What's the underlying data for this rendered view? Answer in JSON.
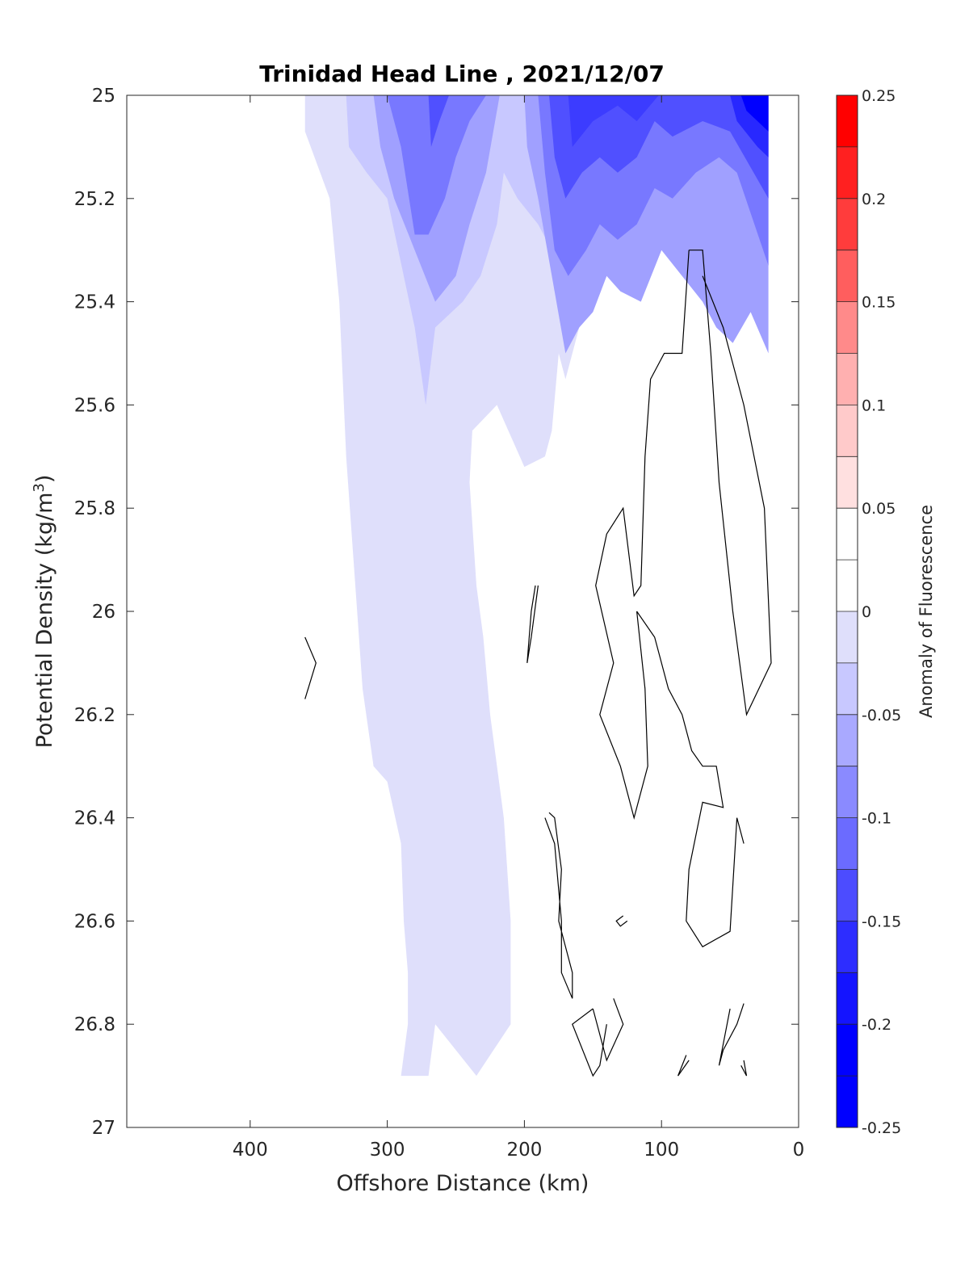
{
  "chart_data": {
    "type": "contour",
    "title": "Trinidad Head Line , 2021/12/07",
    "xlabel": "Offshore Distance (km)",
    "ylabel_main": "Potential Density (kg/m",
    "ylabel_sup": "3",
    "ylabel_close": ")",
    "xlim": [
      490,
      0
    ],
    "ylim": [
      25,
      27
    ],
    "x_reversed": true,
    "y_reversed": true,
    "xticks": [
      400,
      300,
      200,
      100,
      0
    ],
    "xtick_labels": [
      "400",
      "300",
      "200",
      "100",
      "0"
    ],
    "yticks": [
      25,
      25.2,
      25.4,
      25.6,
      25.8,
      26,
      26.2,
      26.4,
      26.6,
      26.8,
      27
    ],
    "ytick_labels": [
      "25",
      "25.2",
      "25.4",
      "25.6",
      "25.8",
      "26",
      "26.2",
      "26.4",
      "26.6",
      "26.8",
      "27"
    ],
    "colorbar": {
      "title": "Anomaly of Fluorescence",
      "range": [
        -0.25,
        0.25
      ],
      "ticks": [
        0.25,
        0.2,
        0.15,
        0.1,
        0.05,
        0,
        -0.05,
        -0.1,
        -0.15,
        -0.2,
        -0.25
      ],
      "tick_labels": [
        "0.25",
        "0.2",
        "0.15",
        "0.1",
        "0.05",
        "0",
        "-0.05",
        "-0.1",
        "-0.15",
        "-0.2",
        "-0.25"
      ],
      "levels": [
        {
          "from": 0.2,
          "to": 0.25,
          "color": "#ff0000"
        },
        {
          "from": 0.15,
          "to": 0.2,
          "color": "#ff2828"
        },
        {
          "from": 0.1,
          "to": 0.15,
          "color": "#ff5050"
        },
        {
          "from": 0.05,
          "to": 0.1,
          "color": "#ff7878"
        },
        {
          "from": 0.025,
          "to": 0.05,
          "color": "#ffa0a0"
        },
        {
          "from": 0.0,
          "to": 0.025,
          "color": "#ffc8c8"
        },
        {
          "from": -0.025,
          "to": 0.0,
          "color": "#ffdfdf"
        },
        {
          "from": -0.025,
          "to": 0.025,
          "color": "#ffffff"
        },
        {
          "from": -0.05,
          "to": -0.025,
          "color": "#dfdffb"
        },
        {
          "from": -0.075,
          "to": -0.05,
          "color": "#c8c8ff"
        },
        {
          "from": -0.1,
          "to": -0.075,
          "color": "#a0a0ff"
        },
        {
          "from": -0.125,
          "to": -0.1,
          "color": "#7878ff"
        },
        {
          "from": -0.15,
          "to": -0.125,
          "color": "#5050ff"
        },
        {
          "from": -0.2,
          "to": -0.15,
          "color": "#2828ff"
        },
        {
          "from": -0.25,
          "to": -0.2,
          "color": "#0000ff"
        }
      ],
      "strip_colors": [
        "#ff0000",
        "#ff2020",
        "#ff3c3c",
        "#ff5e5e",
        "#ff8a8a",
        "#ffb0b0",
        "#ffcaca",
        "#ffe0e0",
        "#ffffff",
        "#ffffff",
        "#dfdffb",
        "#c8c8ff",
        "#a9a9ff",
        "#8a8aff",
        "#6b6bff",
        "#4c4cff",
        "#2d2dff",
        "#1414ff",
        "#0000ff",
        "#0000ff"
      ]
    },
    "regions": [
      {
        "level": -0.025,
        "color": "#dfdffb",
        "points": [
          [
            360,
            25.0
          ],
          [
            360,
            25.07
          ],
          [
            342,
            25.2
          ],
          [
            335,
            25.4
          ],
          [
            330,
            25.7
          ],
          [
            322,
            26.0
          ],
          [
            318,
            26.15
          ],
          [
            310,
            26.3
          ],
          [
            300,
            26.33
          ],
          [
            290,
            26.45
          ],
          [
            288,
            26.6
          ],
          [
            285,
            26.7
          ],
          [
            285,
            26.8
          ],
          [
            290,
            26.9
          ],
          [
            270,
            26.9
          ],
          [
            265,
            26.8
          ],
          [
            235,
            26.9
          ],
          [
            210,
            26.8
          ],
          [
            210,
            26.6
          ],
          [
            215,
            26.4
          ],
          [
            225,
            26.2
          ],
          [
            230,
            26.05
          ],
          [
            235,
            25.95
          ],
          [
            240,
            25.75
          ],
          [
            238,
            25.65
          ],
          [
            220,
            25.6
          ],
          [
            200,
            25.72
          ],
          [
            185,
            25.7
          ],
          [
            180,
            25.65
          ],
          [
            175,
            25.5
          ],
          [
            170,
            25.55
          ],
          [
            160,
            25.45
          ],
          [
            150,
            25.35
          ],
          [
            140,
            25.3
          ],
          [
            120,
            25.25
          ],
          [
            100,
            25.2
          ],
          [
            90,
            25.1
          ],
          [
            70,
            25.05
          ],
          [
            50,
            25.1
          ],
          [
            35,
            25.0
          ]
        ]
      },
      {
        "level": -0.05,
        "color": "#c8c8ff",
        "points": [
          [
            330,
            25.0
          ],
          [
            328,
            25.1
          ],
          [
            315,
            25.15
          ],
          [
            300,
            25.2
          ],
          [
            288,
            25.35
          ],
          [
            280,
            25.45
          ],
          [
            272,
            25.6
          ],
          [
            265,
            25.45
          ],
          [
            245,
            25.4
          ],
          [
            232,
            25.35
          ],
          [
            220,
            25.25
          ],
          [
            215,
            25.15
          ],
          [
            205,
            25.2
          ],
          [
            190,
            25.25
          ],
          [
            180,
            25.3
          ],
          [
            170,
            25.35
          ],
          [
            160,
            25.3
          ],
          [
            150,
            25.25
          ],
          [
            140,
            25.2
          ],
          [
            130,
            25.25
          ],
          [
            110,
            25.2
          ],
          [
            95,
            25.15
          ],
          [
            75,
            25.1
          ],
          [
            60,
            25.05
          ],
          [
            45,
            25.05
          ],
          [
            35,
            25.0
          ]
        ]
      },
      {
        "level": -0.075,
        "color": "#a0a0ff",
        "points": [
          [
            310,
            25.0
          ],
          [
            305,
            25.1
          ],
          [
            295,
            25.2
          ],
          [
            280,
            25.3
          ],
          [
            265,
            25.4
          ],
          [
            250,
            25.35
          ],
          [
            240,
            25.25
          ],
          [
            228,
            25.15
          ],
          [
            218,
            25.0
          ]
        ]
      },
      {
        "level": -0.075,
        "color": "#a0a0ff",
        "points": [
          [
            200,
            25.0
          ],
          [
            198,
            25.1
          ],
          [
            190,
            25.2
          ],
          [
            180,
            25.35
          ],
          [
            170,
            25.5
          ],
          [
            160,
            25.45
          ],
          [
            150,
            25.42
          ],
          [
            140,
            25.35
          ],
          [
            130,
            25.38
          ],
          [
            115,
            25.4
          ],
          [
            100,
            25.3
          ],
          [
            85,
            25.35
          ],
          [
            70,
            25.4
          ],
          [
            60,
            25.45
          ],
          [
            48,
            25.48
          ],
          [
            35,
            25.42
          ],
          [
            22,
            25.5
          ],
          [
            22,
            25.0
          ]
        ]
      },
      {
        "level": -0.1,
        "color": "#7878ff",
        "points": [
          [
            300,
            25.0
          ],
          [
            290,
            25.1
          ],
          [
            280,
            25.27
          ],
          [
            270,
            25.27
          ],
          [
            258,
            25.2
          ],
          [
            250,
            25.12
          ],
          [
            240,
            25.05
          ],
          [
            228,
            25.0
          ]
        ]
      },
      {
        "level": -0.1,
        "color": "#7878ff",
        "points": [
          [
            190,
            25.0
          ],
          [
            185,
            25.15
          ],
          [
            178,
            25.3
          ],
          [
            168,
            25.35
          ],
          [
            155,
            25.3
          ],
          [
            145,
            25.25
          ],
          [
            132,
            25.28
          ],
          [
            118,
            25.25
          ],
          [
            105,
            25.18
          ],
          [
            92,
            25.2
          ],
          [
            75,
            25.15
          ],
          [
            58,
            25.12
          ],
          [
            45,
            25.15
          ],
          [
            22,
            25.33
          ],
          [
            22,
            25.0
          ]
        ]
      },
      {
        "level": -0.125,
        "color": "#5050ff",
        "points": [
          [
            270,
            25.0
          ],
          [
            268,
            25.1
          ],
          [
            262,
            25.05
          ],
          [
            255,
            25.0
          ]
        ]
      },
      {
        "level": -0.125,
        "color": "#5050ff",
        "points": [
          [
            182,
            25.0
          ],
          [
            178,
            25.12
          ],
          [
            170,
            25.2
          ],
          [
            158,
            25.15
          ],
          [
            145,
            25.12
          ],
          [
            132,
            25.15
          ],
          [
            118,
            25.12
          ],
          [
            105,
            25.05
          ],
          [
            92,
            25.08
          ],
          [
            70,
            25.05
          ],
          [
            50,
            25.07
          ],
          [
            22,
            25.2
          ],
          [
            22,
            25.0
          ]
        ]
      },
      {
        "level": -0.15,
        "color": "#3c3cff",
        "points": [
          [
            168,
            25.0
          ],
          [
            165,
            25.1
          ],
          [
            150,
            25.05
          ],
          [
            132,
            25.02
          ],
          [
            118,
            25.05
          ],
          [
            102,
            25.0
          ]
        ]
      },
      {
        "level": -0.15,
        "color": "#2828ff",
        "points": [
          [
            50,
            25.0
          ],
          [
            45,
            25.05
          ],
          [
            30,
            25.1
          ],
          [
            22,
            25.12
          ],
          [
            22,
            25.0
          ]
        ]
      },
      {
        "level": -0.2,
        "color": "#0000ff",
        "points": [
          [
            42,
            25.0
          ],
          [
            38,
            25.03
          ],
          [
            30,
            25.05
          ],
          [
            22,
            25.07
          ],
          [
            22,
            25.0
          ]
        ]
      }
    ],
    "contours": [
      [
        [
          360,
          26.05
        ],
        [
          352,
          26.1
        ],
        [
          360,
          26.17
        ]
      ],
      [
        [
          80,
          25.3
        ],
        [
          70,
          25.3
        ],
        [
          64,
          25.5
        ],
        [
          58,
          25.75
        ],
        [
          48,
          26.0
        ],
        [
          38,
          26.2
        ],
        [
          20,
          26.1
        ],
        [
          25,
          25.8
        ],
        [
          40,
          25.6
        ],
        [
          55,
          25.45
        ],
        [
          70,
          25.35
        ]
      ],
      [
        [
          80,
          25.3
        ],
        [
          85,
          25.5
        ],
        [
          98,
          25.5
        ],
        [
          108,
          25.55
        ],
        [
          112,
          25.7
        ],
        [
          115,
          25.95
        ],
        [
          120,
          25.97
        ],
        [
          128,
          25.8
        ],
        [
          140,
          25.85
        ],
        [
          148,
          25.95
        ],
        [
          135,
          26.1
        ],
        [
          145,
          26.2
        ],
        [
          130,
          26.3
        ],
        [
          120,
          26.4
        ],
        [
          110,
          26.3
        ],
        [
          112,
          26.15
        ],
        [
          118,
          26.0
        ],
        [
          105,
          26.05
        ],
        [
          95,
          26.15
        ],
        [
          85,
          26.2
        ],
        [
          78,
          26.27
        ],
        [
          70,
          26.3
        ],
        [
          60,
          26.3
        ],
        [
          55,
          26.38
        ],
        [
          70,
          26.37
        ],
        [
          80,
          26.5
        ],
        [
          82,
          26.6
        ],
        [
          70,
          26.65
        ],
        [
          50,
          26.62
        ],
        [
          45,
          26.4
        ],
        [
          40,
          26.45
        ]
      ],
      [
        [
          190,
          25.95
        ],
        [
          195,
          26.05
        ],
        [
          198,
          26.1
        ],
        [
          195,
          26.0
        ],
        [
          192,
          25.95
        ]
      ],
      [
        [
          185,
          26.4
        ],
        [
          178,
          26.45
        ],
        [
          173,
          26.6
        ],
        [
          173,
          26.7
        ],
        [
          165,
          26.75
        ],
        [
          165,
          26.7
        ],
        [
          175,
          26.6
        ],
        [
          173,
          26.5
        ],
        [
          178,
          26.4
        ],
        [
          182,
          26.39
        ]
      ],
      [
        [
          125,
          26.6
        ],
        [
          130,
          26.61
        ],
        [
          133,
          26.6
        ],
        [
          128,
          26.59
        ]
      ],
      [
        [
          150,
          26.77
        ],
        [
          165,
          26.8
        ],
        [
          150,
          26.9
        ],
        [
          145,
          26.88
        ],
        [
          140,
          26.8
        ]
      ],
      [
        [
          80,
          26.87
        ],
        [
          88,
          26.9
        ],
        [
          82,
          26.86
        ]
      ],
      [
        [
          40,
          26.76
        ],
        [
          45,
          26.8
        ],
        [
          55,
          26.85
        ],
        [
          58,
          26.88
        ],
        [
          50,
          26.77
        ]
      ],
      [
        [
          40,
          26.87
        ],
        [
          38,
          26.9
        ],
        [
          42,
          26.88
        ]
      ],
      [
        [
          150,
          26.77
        ],
        [
          140,
          26.87
        ],
        [
          128,
          26.8
        ],
        [
          135,
          26.75
        ]
      ]
    ]
  }
}
